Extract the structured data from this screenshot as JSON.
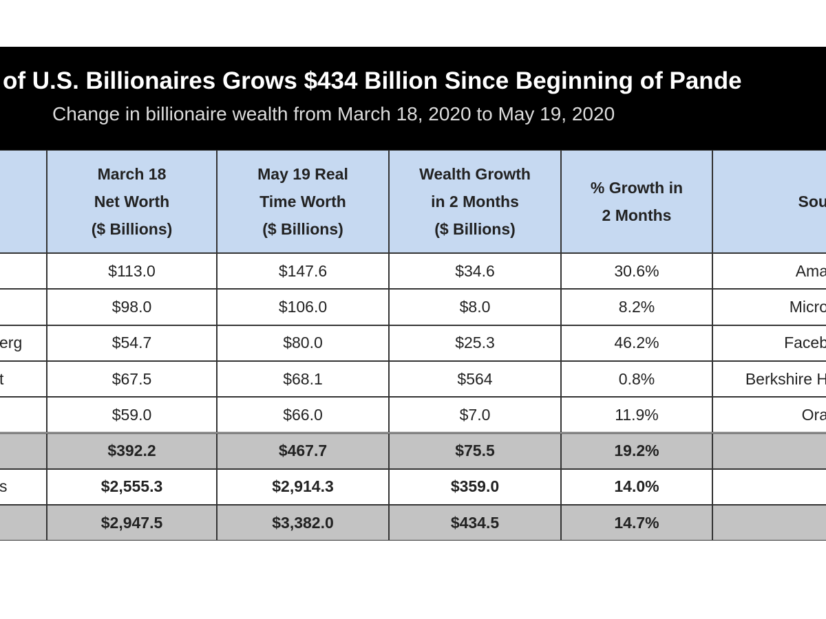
{
  "header": {
    "title": "of U.S. Billionaires Grows $434 Billion Since Beginning of Pande",
    "subtitle": "Change in billionaire wealth from March 18, 2020 to May 19, 2020"
  },
  "table": {
    "columns": [
      "March 18\nNet Worth\n($ Billions)",
      "May 19 Real\nTime Worth\n($ Billions)",
      "Wealth Growth\nin 2 Months\n($ Billions)",
      "% Growth in\n2 Months",
      "Sou"
    ],
    "rows": [
      {
        "cells": [
          "$113.0",
          "$147.6",
          "$34.6",
          "30.6%"
        ],
        "source": "Ama"
      },
      {
        "cells": [
          "$98.0",
          "$106.0",
          "$8.0",
          "8.2%"
        ],
        "source": "Micro"
      },
      {
        "name": "erg",
        "cells": [
          "$54.7",
          "$80.0",
          "$25.3",
          "46.2%"
        ],
        "source": "Faceb"
      },
      {
        "name": "t",
        "cells": [
          "$67.5",
          "$68.1",
          "$564",
          "0.8%"
        ],
        "source": "Berkshire H"
      },
      {
        "cells": [
          "$59.0",
          "$66.0",
          "$7.0",
          "11.9%"
        ],
        "source": "Ora"
      },
      {
        "cells": [
          "$392.2",
          "$467.7",
          "$75.5",
          "19.2%"
        ],
        "total": true
      },
      {
        "name": "s",
        "cells": [
          "$2,555.3",
          "$2,914.3",
          "$359.0",
          "14.0%"
        ],
        "bold": true
      },
      {
        "cells": [
          "$2,947.5",
          "$3,382.0",
          "$434.5",
          "14.7%"
        ],
        "total": true
      }
    ]
  }
}
